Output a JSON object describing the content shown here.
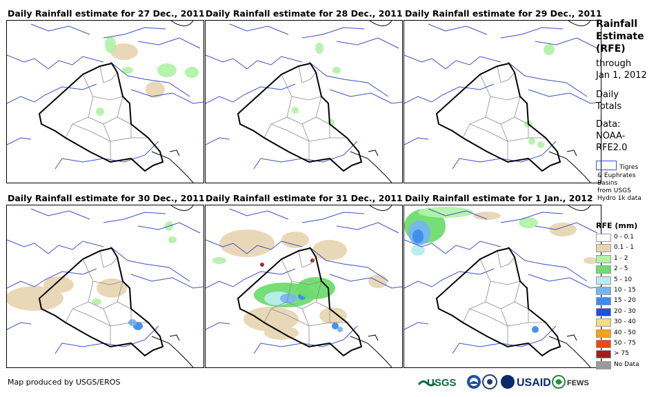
{
  "panels": [
    {
      "title": "Daily Rainfall estimate for 27 Dec., 2011"
    },
    {
      "title": "Daily Rainfall estimate for 28 Dec., 2011"
    },
    {
      "title": "Daily Rainfall estimate for 29 Dec., 2011"
    },
    {
      "title": "Daily Rainfall estimate for 30 Dec., 2011"
    },
    {
      "title": "Daily Rainfall estimate for 31 Dec., 2011"
    },
    {
      "title": "Daily Rainfall estimate for 1 Jan., 2012"
    }
  ],
  "sidebar": {
    "heading_lines": [
      "Rainfall",
      "Estimate",
      "(RFE)"
    ],
    "through_lines": [
      "through",
      "Jan 1, 2012"
    ],
    "daily_lines": [
      "Daily",
      "Totals"
    ],
    "data_lines": [
      "Data:",
      "NOAA-",
      "RFE2.0"
    ],
    "basin_first": "Tigres",
    "basin_lines": [
      "& Euphrates",
      "Basins",
      "from USGS",
      "Hydro 1k data"
    ]
  },
  "legend": {
    "title": "RFE (mm)",
    "items": [
      {
        "label": "0 - 0.1",
        "color": "#ffffff"
      },
      {
        "label": "0.1 - 1",
        "color": "#e8d6b3"
      },
      {
        "label": "1 - 2",
        "color": "#b2f2a8"
      },
      {
        "label": "2 - 5",
        "color": "#6edc6e"
      },
      {
        "label": "5 - 10",
        "color": "#b8ecec"
      },
      {
        "label": "10 - 15",
        "color": "#78b4f0"
      },
      {
        "label": "15 - 20",
        "color": "#3c8cf0"
      },
      {
        "label": "20 - 30",
        "color": "#1e50dc"
      },
      {
        "label": "30 - 40",
        "color": "#f5dc82"
      },
      {
        "label": "40 - 50",
        "color": "#f5a01e"
      },
      {
        "label": "50 - 75",
        "color": "#f04614"
      },
      {
        "label": "> 75",
        "color": "#a01e1e"
      },
      {
        "label": "No Data",
        "color": "#9a9a9a"
      }
    ]
  },
  "footer": {
    "credit": "Map produced by USGS/EROS",
    "logos": [
      "USGS",
      "USAID",
      "FEWS NET"
    ]
  }
}
